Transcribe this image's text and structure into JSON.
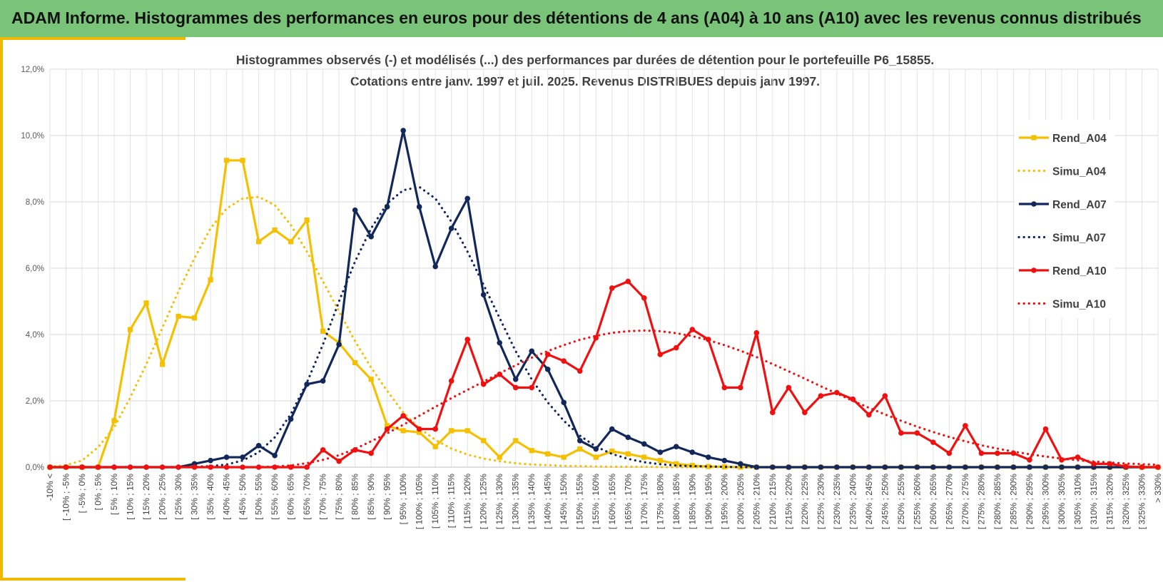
{
  "header": {
    "banner": "ADAM Informe. Histogrammes des performances en euros pour des détentions de 4 ans (A04) à 10 ans (A10) avec les revenus connus distribués"
  },
  "colors": {
    "banner_bg": "#7ac47a",
    "accent": "#f2b700",
    "a04": "#f5c000",
    "a07": "#12285a",
    "a10": "#f01010"
  },
  "chart_data": {
    "type": "line",
    "title_line1": "Histogrammes observés (-) et modélisés (...) des performances par durées de détention pour le portefeuille P6_15855.",
    "title_line2": "Cotations entre janv. 1997 et juil. 2025. Revenus DISTRIBUES depuis janv 1997.",
    "xlabel": "",
    "ylabel": "",
    "ylim": [
      0,
      0.12
    ],
    "yticks": [
      "0,0%",
      "2,0%",
      "4,0%",
      "6,0%",
      "8,0%",
      "10,0%",
      "12,0%"
    ],
    "grid": true,
    "legend_position": "right",
    "categories": [
      "-10% <",
      "[ -10% ; -5%",
      "[ -5% ; 0%",
      "[ 0% ; 5%",
      "[ 5% ; 10%",
      "[ 10% ; 15%",
      "[ 15% ; 20%",
      "[ 20% ; 25%",
      "[ 25% ; 30%",
      "[ 30% ; 35%",
      "[ 35% ; 40%",
      "[ 40% ; 45%",
      "[ 45% ; 50%",
      "[ 50% ; 55%",
      "[ 55% ; 60%",
      "[ 60% ; 65%",
      "[ 65% ; 70%",
      "[ 70% ; 75%",
      "[ 75% ; 80%",
      "[ 80% ; 85%",
      "[ 85% ; 90%",
      "[ 90% ; 95%",
      "[ 95% ; 100%",
      "[ 100% ; 105%",
      "[ 105% ; 110%",
      "[ 110% ; 115%",
      "[ 115% ; 120%",
      "[ 120% ; 125%",
      "[ 125% ; 130%",
      "[ 130% ; 135%",
      "[ 135% ; 140%",
      "[ 140% ; 145%",
      "[ 145% ; 150%",
      "[ 150% ; 155%",
      "[ 155% ; 160%",
      "[ 160% ; 165%",
      "[ 165% ; 170%",
      "[ 170% ; 175%",
      "[ 175% ; 180%",
      "[ 180% ; 185%",
      "[ 185% ; 190%",
      "[ 190% ; 195%",
      "[ 195% ; 200%",
      "[ 200% ; 205%",
      "[ 205% ; 210%",
      "[ 210% ; 215%",
      "[ 215% ; 220%",
      "[ 220% ; 225%",
      "[ 225% ; 230%",
      "[ 230% ; 235%",
      "[ 235% ; 240%",
      "[ 240% ; 245%",
      "[ 245% ; 250%",
      "[ 250% ; 255%",
      "[ 255% ; 260%",
      "[ 260% ; 265%",
      "[ 265% ; 270%",
      "[ 270% ; 275%",
      "[ 275% ; 280%",
      "[ 280% ; 285%",
      "[ 285% ; 290%",
      "[ 290% ; 295%",
      "[ 295% ; 300%",
      "[ 300% ; 305%",
      "[ 305% ; 310%",
      "[ 310% ; 315%",
      "[ 315% ; 320%",
      "[ 320% ; 325%",
      "[ 325% ; 330%",
      "> 330%"
    ],
    "series": [
      {
        "name": "Rend_A04",
        "style": "solid",
        "marker": "square",
        "color": "#f5c000",
        "values": [
          0,
          0,
          0,
          0,
          0.014,
          0.0415,
          0.0495,
          0.031,
          0.0455,
          0.045,
          0.0565,
          0.0925,
          0.0925,
          0.068,
          0.0715,
          0.068,
          0.0745,
          0.041,
          0.0375,
          0.0315,
          0.0265,
          0.0125,
          0.011,
          0.0105,
          0.0062,
          0.011,
          0.011,
          0.008,
          0.003,
          0.008,
          0.005,
          0.004,
          0.003,
          0.0055,
          0.003,
          0.0048,
          0.004,
          0.003,
          0.002,
          0.001,
          0.0005,
          0.0002,
          0.0001,
          0,
          0,
          0,
          0,
          0,
          0,
          0,
          0,
          0,
          0,
          0,
          0,
          0,
          0,
          0,
          0,
          0,
          0,
          0,
          0,
          0,
          0,
          0,
          0,
          0,
          0,
          0
        ]
      },
      {
        "name": "Simu_A04",
        "style": "dotted",
        "marker": "none",
        "color": "#f5c000",
        "values": [
          0.0001,
          0.0006,
          0.002,
          0.006,
          0.012,
          0.021,
          0.031,
          0.042,
          0.053,
          0.063,
          0.072,
          0.078,
          0.081,
          0.0815,
          0.079,
          0.073,
          0.065,
          0.056,
          0.047,
          0.038,
          0.03,
          0.023,
          0.0165,
          0.0118,
          0.0082,
          0.0056,
          0.0038,
          0.0026,
          0.0018,
          0.0012,
          0.0008,
          0.0006,
          0.0004,
          0.0003,
          0.0002,
          0.0001,
          0.0001,
          0.0001,
          0,
          0,
          0,
          0,
          0,
          0,
          0,
          0,
          0,
          0,
          0,
          0,
          0,
          0,
          0,
          0,
          0,
          0,
          0,
          0,
          0,
          0,
          0,
          0,
          0,
          0,
          0,
          0,
          0,
          0,
          0,
          0
        ]
      },
      {
        "name": "Rend_A07",
        "style": "solid",
        "marker": "circle",
        "color": "#12285a",
        "values": [
          0,
          0,
          0,
          0,
          0,
          0,
          0,
          0,
          0,
          0.001,
          0.002,
          0.003,
          0.003,
          0.0065,
          0.0035,
          0.0145,
          0.025,
          0.026,
          0.037,
          0.0775,
          0.0695,
          0.0785,
          0.1015,
          0.0785,
          0.0605,
          0.072,
          0.081,
          0.052,
          0.0375,
          0.0265,
          0.035,
          0.0295,
          0.0195,
          0.008,
          0.0055,
          0.0115,
          0.009,
          0.007,
          0.0045,
          0.0062,
          0.0045,
          0.003,
          0.002,
          0.001,
          0,
          0,
          0,
          0,
          0,
          0,
          0,
          0,
          0,
          0,
          0,
          0,
          0,
          0,
          0,
          0,
          0,
          0,
          0,
          0,
          0,
          0,
          0,
          0,
          0,
          0
        ]
      },
      {
        "name": "Simu_A07",
        "style": "dotted",
        "marker": "none",
        "color": "#12285a",
        "values": [
          0,
          0,
          0,
          0,
          0,
          0,
          0,
          0,
          0,
          0.0001,
          0.0003,
          0.0008,
          0.002,
          0.0045,
          0.009,
          0.016,
          0.0255,
          0.037,
          0.05,
          0.062,
          0.072,
          0.0795,
          0.0835,
          0.0845,
          0.081,
          0.074,
          0.065,
          0.055,
          0.045,
          0.035,
          0.0265,
          0.0195,
          0.014,
          0.0095,
          0.0062,
          0.004,
          0.0025,
          0.0015,
          0.0009,
          0.0005,
          0.0003,
          0.0002,
          0.0001,
          0,
          0,
          0,
          0,
          0,
          0,
          0,
          0,
          0,
          0,
          0,
          0,
          0,
          0,
          0,
          0,
          0,
          0,
          0,
          0,
          0,
          0,
          0,
          0,
          0,
          0,
          0
        ]
      },
      {
        "name": "Rend_A10",
        "style": "solid",
        "marker": "circle",
        "color": "#f01010",
        "values": [
          0,
          0,
          0,
          0,
          0,
          0,
          0,
          0,
          0,
          0,
          0,
          0,
          0,
          0,
          0,
          0,
          0,
          0.0052,
          0.0018,
          0.0052,
          0.0042,
          0.0115,
          0.0155,
          0.0115,
          0.0115,
          0.026,
          0.0385,
          0.025,
          0.028,
          0.024,
          0.024,
          0.034,
          0.032,
          0.029,
          0.039,
          0.054,
          0.056,
          0.051,
          0.034,
          0.036,
          0.0415,
          0.0385,
          0.024,
          0.024,
          0.0405,
          0.0165,
          0.024,
          0.0165,
          0.0215,
          0.0225,
          0.0205,
          0.0158,
          0.0215,
          0.0103,
          0.0103,
          0.0075,
          0.0042,
          0.0125,
          0.0042,
          0.0042,
          0.0042,
          0.0022,
          0.0115,
          0.0022,
          0.003,
          0.001,
          0.001,
          0.0002,
          0,
          0
        ]
      },
      {
        "name": "Simu_A10",
        "style": "dotted",
        "marker": "none",
        "color": "#f01010",
        "values": [
          0,
          0,
          0,
          0,
          0,
          0,
          0,
          0,
          0,
          0,
          0,
          0,
          0,
          0,
          0.0002,
          0.0005,
          0.0012,
          0.0022,
          0.0036,
          0.0055,
          0.0078,
          0.0102,
          0.0128,
          0.0155,
          0.0182,
          0.0208,
          0.0233,
          0.0258,
          0.0283,
          0.0307,
          0.033,
          0.035,
          0.0368,
          0.0384,
          0.0396,
          0.0405,
          0.041,
          0.0412,
          0.041,
          0.0404,
          0.0395,
          0.0383,
          0.0368,
          0.0351,
          0.0332,
          0.0311,
          0.0289,
          0.0267,
          0.0244,
          0.0222,
          0.02,
          0.0179,
          0.0159,
          0.014,
          0.0122,
          0.0106,
          0.0091,
          0.0078,
          0.0066,
          0.0056,
          0.0047,
          0.0039,
          0.0032,
          0.0026,
          0.0021,
          0.0017,
          0.0014,
          0.0011,
          0.0009,
          0.0007
        ]
      }
    ]
  }
}
